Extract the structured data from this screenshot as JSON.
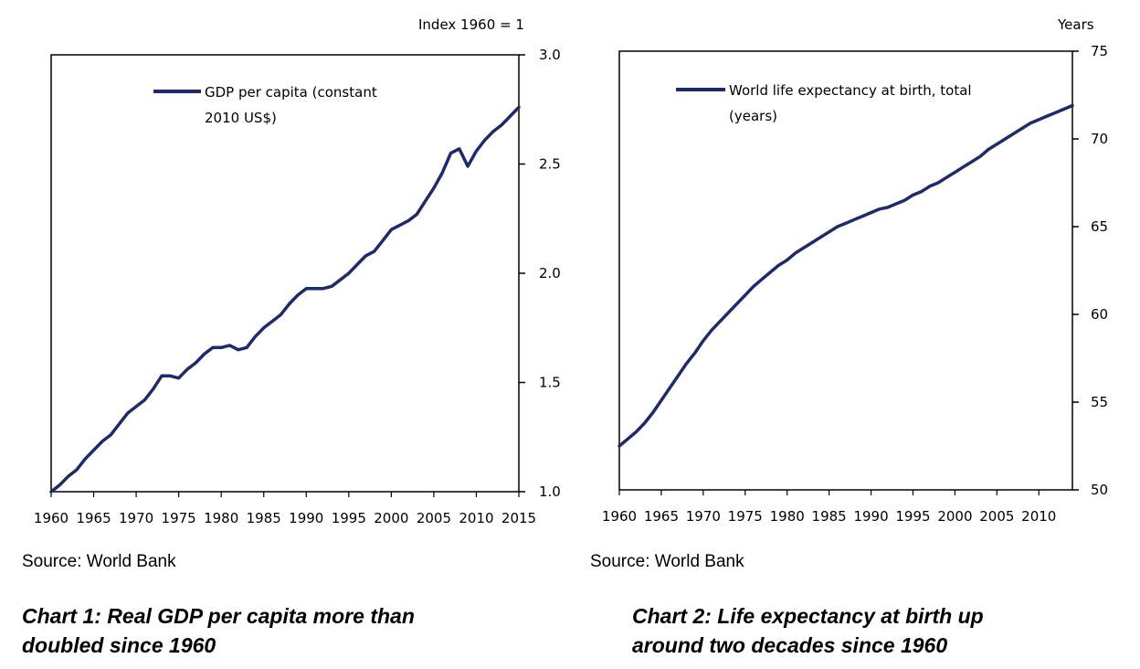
{
  "charts": [
    {
      "unit_label": "Index 1960 = 1",
      "source": "Source: World Bank",
      "caption": [
        "Chart 1: Real GDP per capita more than",
        "doubled since 1960"
      ]
    },
    {
      "unit_label": "Years",
      "source": "Source: World Bank",
      "caption": [
        "Chart 2: Life expectancy at birth up",
        "around two decades since 1960"
      ]
    }
  ],
  "chart_data": [
    {
      "type": "line",
      "title": "Chart 1: Real GDP per capita more than doubled since 1960",
      "xlabel": "",
      "ylabel": "Index 1960 = 1",
      "xlim": [
        1960,
        2015
      ],
      "ylim": [
        1.0,
        3.0
      ],
      "x_ticks": [
        "1960",
        "1965",
        "1970",
        "1975",
        "1980",
        "1985",
        "1990",
        "1995",
        "2000",
        "2005",
        "2010",
        "2015"
      ],
      "y_ticks": [
        "1.0",
        "1.5",
        "2.0",
        "2.5",
        "3.0"
      ],
      "y_axis_side": "right",
      "grid": false,
      "legend_position": "top-left",
      "series": [
        {
          "name": "GDP per capita (constant 2010 US$)",
          "legend_lines": [
            "GDP per capita (constant",
            "2010 US$)"
          ],
          "color": "#1f2a6b",
          "x": [
            1960,
            1961,
            1962,
            1963,
            1964,
            1965,
            1966,
            1967,
            1968,
            1969,
            1970,
            1971,
            1972,
            1973,
            1974,
            1975,
            1976,
            1977,
            1978,
            1979,
            1980,
            1981,
            1982,
            1983,
            1984,
            1985,
            1986,
            1987,
            1988,
            1989,
            1990,
            1991,
            1992,
            1993,
            1994,
            1995,
            1996,
            1997,
            1998,
            1999,
            2000,
            2001,
            2002,
            2003,
            2004,
            2005,
            2006,
            2007,
            2008,
            2009,
            2010,
            2011,
            2012,
            2013,
            2014,
            2015
          ],
          "values": [
            1.0,
            1.03,
            1.07,
            1.1,
            1.15,
            1.19,
            1.23,
            1.26,
            1.31,
            1.36,
            1.39,
            1.42,
            1.47,
            1.53,
            1.53,
            1.52,
            1.56,
            1.59,
            1.63,
            1.66,
            1.66,
            1.67,
            1.65,
            1.66,
            1.71,
            1.75,
            1.78,
            1.81,
            1.86,
            1.9,
            1.93,
            1.93,
            1.93,
            1.94,
            1.97,
            2.0,
            2.04,
            2.08,
            2.1,
            2.15,
            2.2,
            2.22,
            2.24,
            2.27,
            2.33,
            2.39,
            2.46,
            2.55,
            2.57,
            2.49,
            2.56,
            2.61,
            2.65,
            2.68,
            2.72,
            2.76
          ]
        }
      ]
    },
    {
      "type": "line",
      "title": "Chart 2: Life expectancy at birth up around two decades since 1960",
      "xlabel": "",
      "ylabel": "Years",
      "xlim": [
        1960,
        2014
      ],
      "ylim": [
        50,
        75
      ],
      "x_ticks": [
        "1960",
        "1965",
        "1970",
        "1975",
        "1980",
        "1985",
        "1990",
        "1995",
        "2000",
        "2005",
        "2010"
      ],
      "y_ticks": [
        "50",
        "55",
        "60",
        "65",
        "70",
        "75"
      ],
      "y_axis_side": "right",
      "grid": false,
      "legend_position": "top-left",
      "series": [
        {
          "name": "World life expectancy at birth, total (years)",
          "legend_lines": [
            "World life expectancy at birth, total",
            "(years)"
          ],
          "color": "#1f2a6b",
          "x": [
            1960,
            1961,
            1962,
            1963,
            1964,
            1965,
            1966,
            1967,
            1968,
            1969,
            1970,
            1971,
            1972,
            1973,
            1974,
            1975,
            1976,
            1977,
            1978,
            1979,
            1980,
            1981,
            1982,
            1983,
            1984,
            1985,
            1986,
            1987,
            1988,
            1989,
            1990,
            1991,
            1992,
            1993,
            1994,
            1995,
            1996,
            1997,
            1998,
            1999,
            2000,
            2001,
            2002,
            2003,
            2004,
            2005,
            2006,
            2007,
            2008,
            2009,
            2010,
            2011,
            2012,
            2013,
            2014
          ],
          "values": [
            52.5,
            52.9,
            53.3,
            53.8,
            54.4,
            55.1,
            55.8,
            56.5,
            57.2,
            57.8,
            58.5,
            59.1,
            59.6,
            60.1,
            60.6,
            61.1,
            61.6,
            62.0,
            62.4,
            62.8,
            63.1,
            63.5,
            63.8,
            64.1,
            64.4,
            64.7,
            65.0,
            65.2,
            65.4,
            65.6,
            65.8,
            66.0,
            66.1,
            66.3,
            66.5,
            66.8,
            67.0,
            67.3,
            67.5,
            67.8,
            68.1,
            68.4,
            68.7,
            69.0,
            69.4,
            69.7,
            70.0,
            70.3,
            70.6,
            70.9,
            71.1,
            71.3,
            71.5,
            71.7,
            71.9
          ]
        }
      ]
    }
  ]
}
